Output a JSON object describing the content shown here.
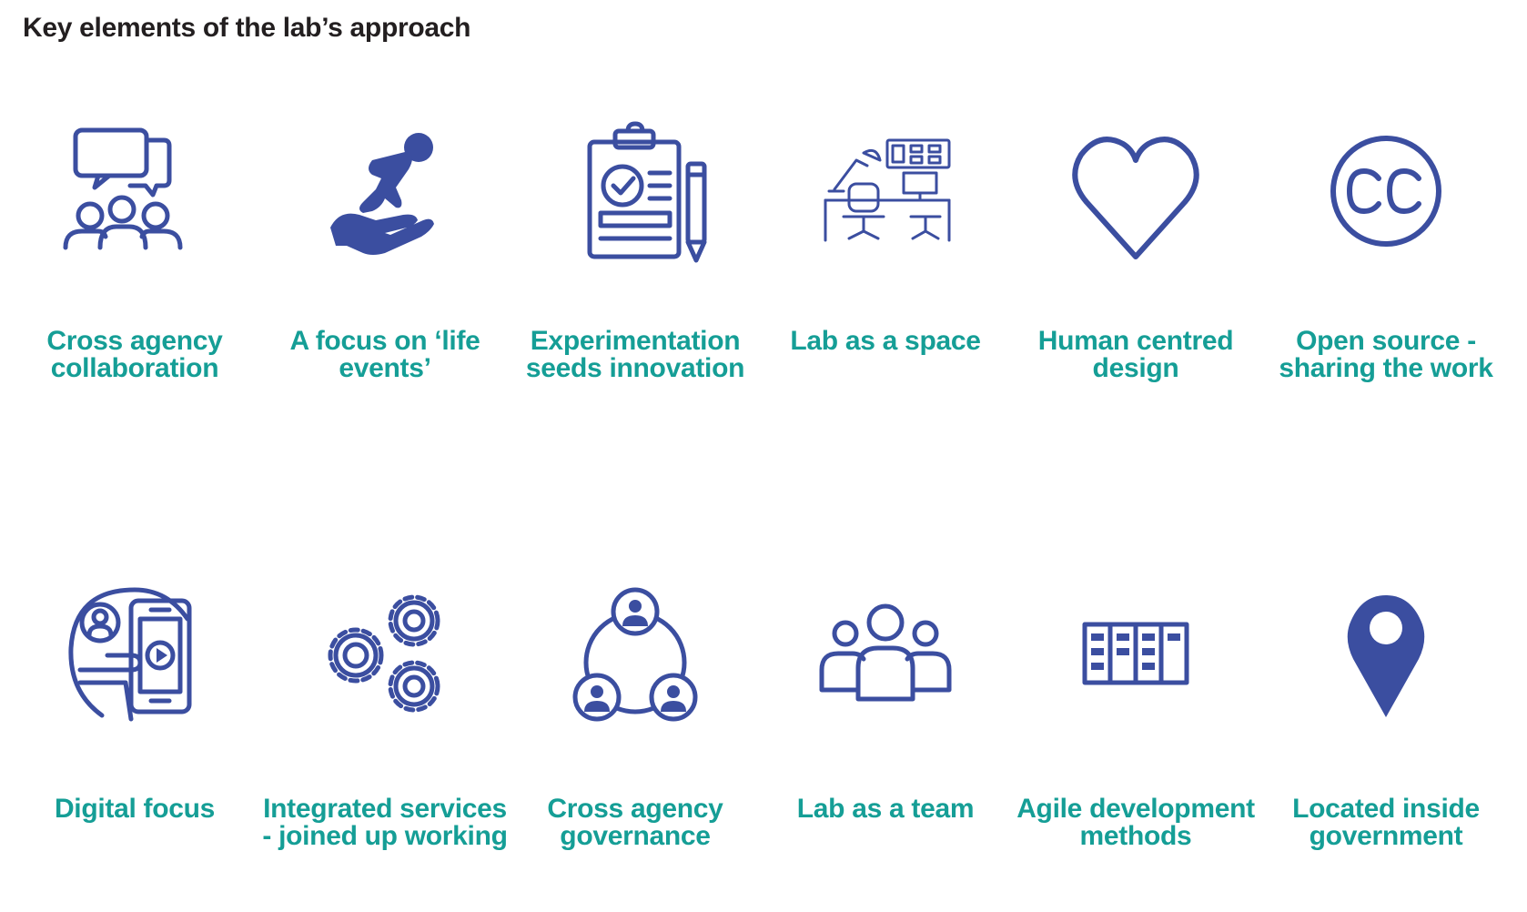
{
  "title": "Key elements of the lab’s approach",
  "colors": {
    "icon": "#3b4ea0",
    "label": "#159e96",
    "title": "#231f20"
  },
  "elements": [
    {
      "label": "Cross agency collaboration",
      "icon": "chat-group-icon"
    },
    {
      "label": "A focus on ‘life events’",
      "icon": "baby-in-hand-icon"
    },
    {
      "label": "Experimentation seeds innovation",
      "icon": "clipboard-pencil-icon"
    },
    {
      "label": "Lab as a space",
      "icon": "workspace-desk-icon"
    },
    {
      "label": "Human centred design",
      "icon": "heart-icon"
    },
    {
      "label": "Open source - sharing the work",
      "icon": "creative-commons-icon"
    },
    {
      "label": "Digital focus",
      "icon": "smartphone-video-icon"
    },
    {
      "label": "Integrated services - joined up working",
      "icon": "gears-icon"
    },
    {
      "label": "Cross agency governance",
      "icon": "connected-people-icon"
    },
    {
      "label": "Lab as a team",
      "icon": "team-icon"
    },
    {
      "label": "Agile development methods",
      "icon": "kanban-board-icon"
    },
    {
      "label": "Located inside government",
      "icon": "location-pin-icon"
    }
  ]
}
